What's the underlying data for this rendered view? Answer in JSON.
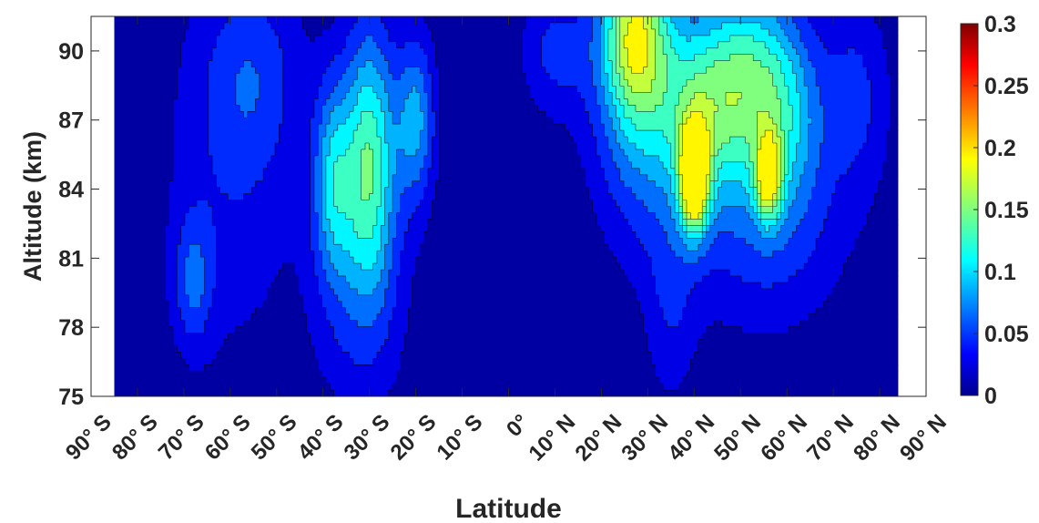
{
  "chart_data": {
    "type": "heatmap",
    "title": "",
    "xlabel": "Latitude",
    "ylabel": "Altitude (km)",
    "xlim": [
      -90,
      90
    ],
    "ylim": [
      75,
      91.5
    ],
    "x_ticks": [
      -90,
      -80,
      -70,
      -60,
      -50,
      -40,
      -30,
      -20,
      -10,
      0,
      10,
      20,
      30,
      40,
      50,
      60,
      70,
      80,
      90
    ],
    "x_tick_labels": [
      "90° S",
      "80° S",
      "70° S",
      "60° S",
      "50° S",
      "40° S",
      "30° S",
      "20° S",
      "10° S",
      "0°",
      "10° N",
      "20° N",
      "30° N",
      "40° N",
      "50° N",
      "60° N",
      "70° N",
      "80° N",
      "90° N"
    ],
    "y_ticks": [
      75,
      78,
      81,
      84,
      87,
      90
    ],
    "y_tick_labels": [
      "75",
      "78",
      "81",
      "84",
      "87",
      "90"
    ],
    "colorbar": {
      "min": 0,
      "max": 0.3,
      "ticks": [
        0,
        0.05,
        0.1,
        0.15,
        0.2,
        0.25,
        0.3
      ],
      "tick_labels": [
        "0",
        "0.05",
        "0.1",
        "0.15",
        "0.2",
        "0.25",
        "0.3"
      ],
      "colormap": "jet"
    },
    "data_extent": {
      "lat_min": -85,
      "lat_max": 84,
      "alt_min": 75,
      "alt_max": 91.5
    },
    "features": [
      {
        "lat": -30,
        "alt": 85.5,
        "value": 0.12,
        "lat_sigma": 4,
        "alt_sigma": 4
      },
      {
        "lat": -38,
        "alt": 84.5,
        "value": 0.08,
        "lat_sigma": 3,
        "alt_sigma": 3
      },
      {
        "lat": -20,
        "alt": 87,
        "value": 0.08,
        "lat_sigma": 3,
        "alt_sigma": 2.5
      },
      {
        "lat": -32,
        "alt": 80,
        "value": 0.04,
        "lat_sigma": 7,
        "alt_sigma": 4
      },
      {
        "lat": -68,
        "alt": 80,
        "value": 0.05,
        "lat_sigma": 3,
        "alt_sigma": 2
      },
      {
        "lat": -60,
        "alt": 85,
        "value": 0.03,
        "lat_sigma": 10,
        "alt_sigma": 6
      },
      {
        "lat": -55,
        "alt": 89,
        "value": 0.035,
        "lat_sigma": 7,
        "alt_sigma": 3
      },
      {
        "lat": 27,
        "alt": 91,
        "value": 0.12,
        "lat_sigma": 5,
        "alt_sigma": 2.5
      },
      {
        "lat": 28,
        "alt": 88,
        "value": 0.08,
        "lat_sigma": 7,
        "alt_sigma": 4
      },
      {
        "lat": 40,
        "alt": 84.5,
        "value": 0.2,
        "lat_sigma": 2.2,
        "alt_sigma": 1.6
      },
      {
        "lat": 42,
        "alt": 87.5,
        "value": 0.1,
        "lat_sigma": 7,
        "alt_sigma": 3
      },
      {
        "lat": 52,
        "alt": 89,
        "value": 0.09,
        "lat_sigma": 7,
        "alt_sigma": 3
      },
      {
        "lat": 56,
        "alt": 84.5,
        "value": 0.13,
        "lat_sigma": 2,
        "alt_sigma": 1.3
      },
      {
        "lat": 60,
        "alt": 87,
        "value": 0.07,
        "lat_sigma": 6,
        "alt_sigma": 3
      },
      {
        "lat": 75,
        "alt": 88,
        "value": 0.04,
        "lat_sigma": 5,
        "alt_sigma": 3
      },
      {
        "lat": 55,
        "alt": 82,
        "value": 0.04,
        "lat_sigma": 12,
        "alt_sigma": 3
      },
      {
        "lat": 10,
        "alt": 90,
        "value": 0.04,
        "lat_sigma": 5,
        "alt_sigma": 2
      },
      {
        "lat": 35,
        "alt": 79,
        "value": 0.03,
        "lat_sigma": 4,
        "alt_sigma": 3
      }
    ],
    "contour_levels": [
      0.02,
      0.04,
      0.06,
      0.08,
      0.1,
      0.12,
      0.14,
      0.16,
      0.18
    ]
  }
}
